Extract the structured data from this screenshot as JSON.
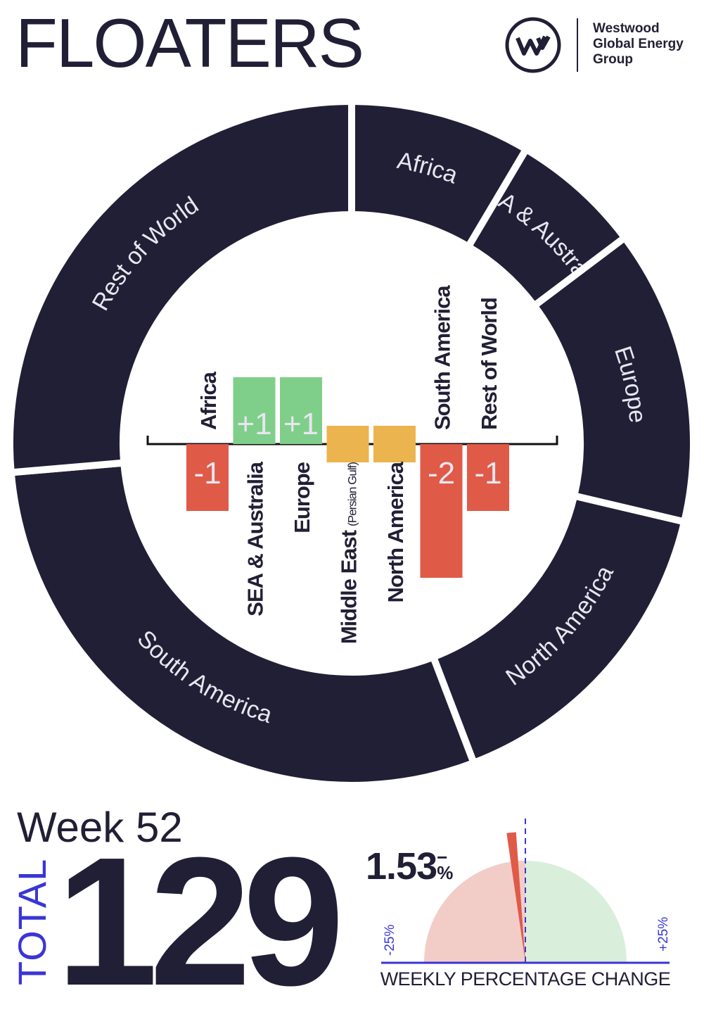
{
  "header": {
    "title": "FLOATERS",
    "brand": [
      "Westwood",
      "Global Energy",
      "Group"
    ],
    "logo_letter": "w"
  },
  "summary": {
    "week": "Week 52",
    "total_label": "TOTAL",
    "total": "129",
    "change_value": "1.53",
    "change_sign": "−",
    "change_unit": "%"
  },
  "colors": {
    "ring": "#211f35",
    "increase": "#7fcf8a",
    "decrease": "#e05a48",
    "no_change": "#ecb44e",
    "gauge_neg": "#f2cdc7",
    "gauge_pos": "#d9efdc",
    "gauge_axis": "#3a35d6"
  },
  "chart_data": [
    {
      "type": "pie",
      "donut": true,
      "total": 129,
      "categories": [
        "Africa",
        "SEA & Australia",
        "Europe",
        "North America",
        "South America",
        "Rest of World"
      ],
      "values": [
        11,
        8,
        18,
        20,
        38,
        34
      ]
    },
    {
      "type": "bar",
      "title": "",
      "categories": [
        "Africa",
        "SEA & Australia",
        "Europe",
        "Middle East",
        "North America",
        "South America",
        "Rest of World"
      ],
      "category_notes": [
        "",
        "",
        "",
        "(Persian Gulf)",
        "",
        "",
        ""
      ],
      "values": [
        -1,
        1,
        1,
        0,
        0,
        -2,
        -1
      ],
      "data_labels": [
        "-1",
        "+1",
        "+1",
        "",
        "",
        "-2",
        "-1"
      ]
    },
    {
      "type": "gauge",
      "title": "WEEKLY PERCENTAGE CHANGE",
      "value": -1.53,
      "range": [
        -25,
        25
      ],
      "min_label": "-25%",
      "max_label": "+25%"
    }
  ]
}
